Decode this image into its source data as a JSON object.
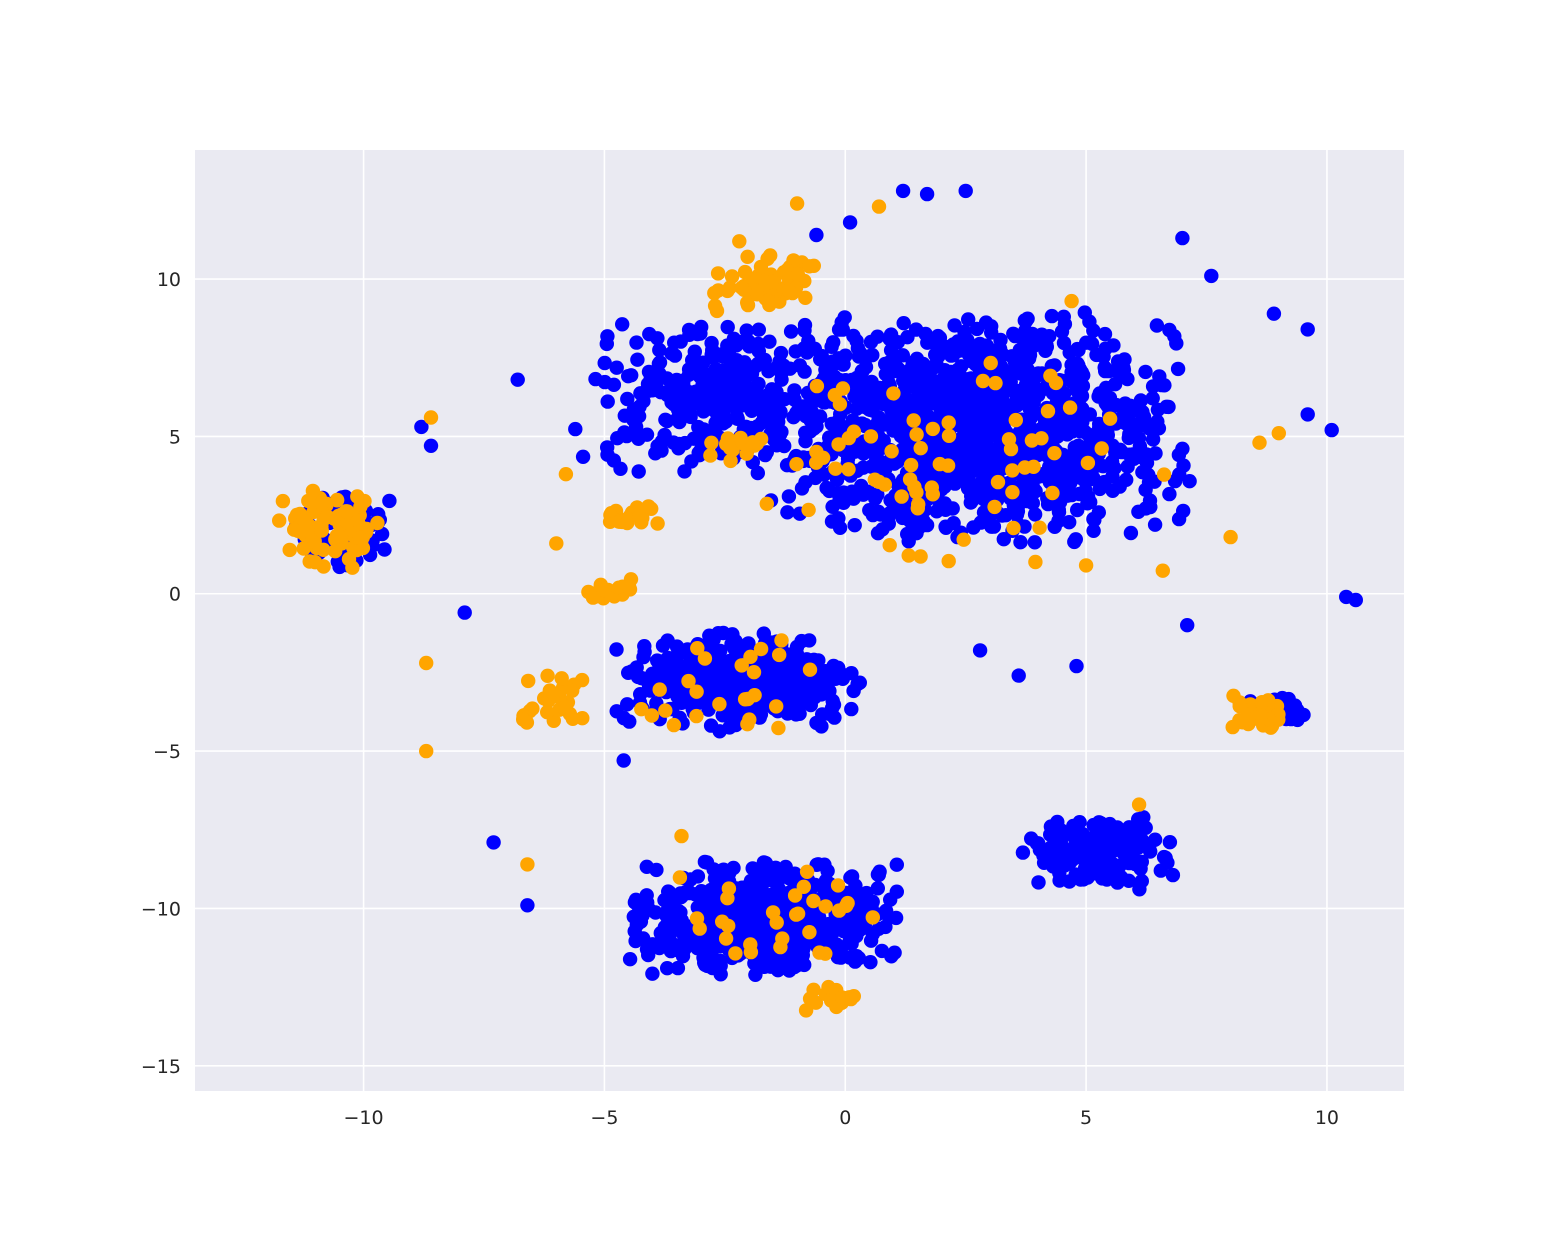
{
  "chart_data": {
    "type": "scatter",
    "title": "",
    "xlabel": "",
    "ylabel": "",
    "xlim": [
      -13.5,
      11.6
    ],
    "ylim": [
      -15.8,
      14.1
    ],
    "x_ticks": [
      -10,
      -5,
      0,
      5,
      10
    ],
    "y_ticks": [
      -15,
      -10,
      -5,
      0,
      5,
      10
    ],
    "x_tick_labels": [
      "−10",
      "−5",
      "0",
      "5",
      "10"
    ],
    "y_tick_labels": [
      "−15",
      "−10",
      "−5",
      "0",
      "5",
      "10"
    ],
    "grid": true,
    "legend": "none",
    "background_color": "#eaeaf2",
    "series": [
      {
        "color": "#0000ff",
        "clusters": [
          {
            "cx": 2.8,
            "cy": 5.3,
            "sx": 3.6,
            "sy": 3.1,
            "n": 1250
          },
          {
            "cx": -2.6,
            "cy": 6.2,
            "sx": 2.2,
            "sy": 2.0,
            "n": 320
          },
          {
            "cx": -10.4,
            "cy": 2.1,
            "sx": 0.9,
            "sy": 1.1,
            "n": 70
          },
          {
            "cx": -2.2,
            "cy": -2.8,
            "sx": 2.2,
            "sy": 1.3,
            "n": 460
          },
          {
            "cx": -1.7,
            "cy": -10.3,
            "sx": 2.3,
            "sy": 1.5,
            "n": 620
          },
          {
            "cx": 5.2,
            "cy": -8.2,
            "sx": 1.3,
            "sy": 1.0,
            "n": 170
          },
          {
            "cx": 9.0,
            "cy": -3.7,
            "sx": 0.5,
            "sy": 0.4,
            "n": 45
          }
        ],
        "points": [
          [
            10.4,
            -0.1
          ],
          [
            10.6,
            -0.2
          ],
          [
            10.1,
            5.2
          ],
          [
            9.6,
            5.7
          ],
          [
            -7.9,
            -0.6
          ],
          [
            -7.3,
            -7.9
          ],
          [
            -6.6,
            -9.9
          ],
          [
            -6.8,
            6.8
          ],
          [
            0.1,
            11.8
          ],
          [
            -0.6,
            11.4
          ],
          [
            1.2,
            12.8
          ],
          [
            1.7,
            12.7
          ],
          [
            2.5,
            12.8
          ],
          [
            7.0,
            11.3
          ],
          [
            7.6,
            10.1
          ],
          [
            8.9,
            8.9
          ],
          [
            9.6,
            8.4
          ],
          [
            -4.6,
            -5.3
          ],
          [
            4.8,
            -2.3
          ],
          [
            3.6,
            -2.6
          ],
          [
            2.8,
            -1.8
          ],
          [
            7.1,
            -1.0
          ],
          [
            -8.6,
            4.7
          ],
          [
            -8.8,
            5.3
          ]
        ]
      },
      {
        "color": "#ffa500",
        "clusters": [
          {
            "cx": -1.7,
            "cy": 9.8,
            "sx": 0.9,
            "sy": 0.8,
            "n": 60
          },
          {
            "cx": -2.3,
            "cy": 4.7,
            "sx": 0.5,
            "sy": 0.4,
            "n": 18
          },
          {
            "cx": -4.4,
            "cy": 2.5,
            "sx": 0.5,
            "sy": 0.3,
            "n": 22
          },
          {
            "cx": -5.0,
            "cy": 0.1,
            "sx": 0.5,
            "sy": 0.3,
            "n": 18
          },
          {
            "cx": -10.7,
            "cy": 2.1,
            "sx": 0.9,
            "sy": 1.1,
            "n": 80
          },
          {
            "cx": -6.2,
            "cy": -3.4,
            "sx": 0.8,
            "sy": 0.8,
            "n": 30
          },
          {
            "cx": -0.3,
            "cy": -12.8,
            "sx": 0.5,
            "sy": 0.4,
            "n": 15
          },
          {
            "cx": 8.6,
            "cy": -3.8,
            "sx": 0.5,
            "sy": 0.5,
            "n": 30
          },
          {
            "cx": 2.5,
            "cy": 4.3,
            "sx": 3.5,
            "sy": 3.0,
            "n": 70
          },
          {
            "cx": -2.3,
            "cy": -3.0,
            "sx": 2.0,
            "sy": 1.3,
            "n": 25
          },
          {
            "cx": -1.5,
            "cy": -10.5,
            "sx": 2.0,
            "sy": 1.4,
            "n": 30
          }
        ],
        "points": [
          [
            -8.7,
            -2.2
          ],
          [
            -8.7,
            -5.0
          ],
          [
            -8.6,
            5.6
          ],
          [
            -5.8,
            3.8
          ],
          [
            -6.0,
            1.6
          ],
          [
            -3.4,
            -7.7
          ],
          [
            -6.6,
            -8.6
          ],
          [
            -1.0,
            12.4
          ],
          [
            0.7,
            12.3
          ],
          [
            -2.2,
            11.2
          ],
          [
            8.0,
            1.8
          ],
          [
            4.3,
            3.2
          ],
          [
            4.7,
            9.3
          ],
          [
            9.0,
            5.1
          ],
          [
            8.6,
            4.8
          ],
          [
            5.0,
            0.9
          ],
          [
            6.1,
            -6.7
          ]
        ]
      }
    ]
  }
}
